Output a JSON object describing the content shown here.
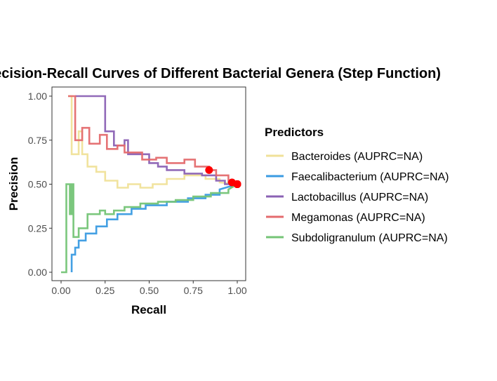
{
  "chart_data": {
    "type": "line",
    "title": "Precision-Recall Curves of Different Bacterial Genera (Step Function)",
    "xlabel": "Recall",
    "ylabel": "Precision",
    "xlim": [
      0,
      1
    ],
    "ylim": [
      0,
      1
    ],
    "x_ticks": [
      "0.00",
      "0.25",
      "0.50",
      "0.75",
      "1.00"
    ],
    "y_ticks": [
      "0.00",
      "0.25",
      "0.50",
      "0.75",
      "1.00"
    ],
    "grid": false,
    "legend_position": "right",
    "legend_title": "Predictors",
    "series": [
      {
        "name": "Bacteroides (AUPRC=NA)",
        "color": "#F0E199",
        "step": true,
        "points": [
          [
            0.04,
            1.0
          ],
          [
            0.06,
            1.0
          ],
          [
            0.06,
            0.67
          ],
          [
            0.1,
            0.67
          ],
          [
            0.1,
            0.8
          ],
          [
            0.12,
            0.8
          ],
          [
            0.12,
            0.67
          ],
          [
            0.15,
            0.67
          ],
          [
            0.15,
            0.6
          ],
          [
            0.2,
            0.6
          ],
          [
            0.2,
            0.57
          ],
          [
            0.25,
            0.57
          ],
          [
            0.25,
            0.52
          ],
          [
            0.32,
            0.52
          ],
          [
            0.32,
            0.48
          ],
          [
            0.38,
            0.48
          ],
          [
            0.38,
            0.5
          ],
          [
            0.45,
            0.5
          ],
          [
            0.45,
            0.48
          ],
          [
            0.52,
            0.48
          ],
          [
            0.52,
            0.5
          ],
          [
            0.6,
            0.5
          ],
          [
            0.6,
            0.53
          ],
          [
            0.7,
            0.53
          ],
          [
            0.7,
            0.55
          ],
          [
            0.82,
            0.55
          ],
          [
            0.82,
            0.53
          ],
          [
            0.9,
            0.53
          ],
          [
            0.9,
            0.51
          ],
          [
            1.0,
            0.5
          ]
        ],
        "endpoint": [
          1.0,
          0.5
        ]
      },
      {
        "name": "Faecalibacterium (AUPRC=NA)",
        "color": "#3A9BE2",
        "step": true,
        "points": [
          [
            0.06,
            0.0
          ],
          [
            0.06,
            0.1
          ],
          [
            0.08,
            0.1
          ],
          [
            0.08,
            0.14
          ],
          [
            0.1,
            0.14
          ],
          [
            0.1,
            0.18
          ],
          [
            0.14,
            0.18
          ],
          [
            0.14,
            0.22
          ],
          [
            0.2,
            0.22
          ],
          [
            0.2,
            0.26
          ],
          [
            0.26,
            0.26
          ],
          [
            0.26,
            0.3
          ],
          [
            0.32,
            0.3
          ],
          [
            0.32,
            0.33
          ],
          [
            0.4,
            0.33
          ],
          [
            0.4,
            0.36
          ],
          [
            0.48,
            0.36
          ],
          [
            0.48,
            0.38
          ],
          [
            0.6,
            0.38
          ],
          [
            0.6,
            0.4
          ],
          [
            0.72,
            0.4
          ],
          [
            0.72,
            0.42
          ],
          [
            0.82,
            0.42
          ],
          [
            0.82,
            0.44
          ],
          [
            0.9,
            0.44
          ],
          [
            0.9,
            0.47
          ],
          [
            1.0,
            0.5
          ]
        ],
        "endpoint": [
          1.0,
          0.5
        ]
      },
      {
        "name": "Lactobacillus (AUPRC=NA)",
        "color": "#8B62B4",
        "step": true,
        "points": [
          [
            0.08,
            1.0
          ],
          [
            0.25,
            1.0
          ],
          [
            0.25,
            0.8
          ],
          [
            0.3,
            0.8
          ],
          [
            0.3,
            0.72
          ],
          [
            0.36,
            0.72
          ],
          [
            0.36,
            0.75
          ],
          [
            0.38,
            0.75
          ],
          [
            0.38,
            0.67
          ],
          [
            0.5,
            0.67
          ],
          [
            0.5,
            0.62
          ],
          [
            0.55,
            0.62
          ],
          [
            0.55,
            0.6
          ],
          [
            0.6,
            0.6
          ],
          [
            0.6,
            0.58
          ],
          [
            0.7,
            0.58
          ],
          [
            0.7,
            0.56
          ],
          [
            0.8,
            0.56
          ],
          [
            0.8,
            0.55
          ],
          [
            0.88,
            0.55
          ],
          [
            0.88,
            0.52
          ],
          [
            0.93,
            0.52
          ],
          [
            0.93,
            0.5
          ],
          [
            1.0,
            0.5
          ]
        ],
        "endpoint": [
          1.0,
          0.5
        ]
      },
      {
        "name": "Megamonas (AUPRC=NA)",
        "color": "#E46B6E",
        "step": true,
        "points": [
          [
            0.04,
            1.0
          ],
          [
            0.08,
            1.0
          ],
          [
            0.08,
            0.75
          ],
          [
            0.12,
            0.75
          ],
          [
            0.12,
            0.82
          ],
          [
            0.16,
            0.82
          ],
          [
            0.16,
            0.73
          ],
          [
            0.22,
            0.73
          ],
          [
            0.22,
            0.78
          ],
          [
            0.26,
            0.78
          ],
          [
            0.26,
            0.7
          ],
          [
            0.32,
            0.7
          ],
          [
            0.32,
            0.72
          ],
          [
            0.36,
            0.72
          ],
          [
            0.36,
            0.68
          ],
          [
            0.46,
            0.68
          ],
          [
            0.46,
            0.64
          ],
          [
            0.54,
            0.64
          ],
          [
            0.54,
            0.65
          ],
          [
            0.6,
            0.65
          ],
          [
            0.6,
            0.62
          ],
          [
            0.7,
            0.62
          ],
          [
            0.7,
            0.64
          ],
          [
            0.76,
            0.64
          ],
          [
            0.76,
            0.6
          ],
          [
            0.84,
            0.6
          ],
          [
            0.84,
            0.58
          ],
          [
            0.88,
            0.58
          ],
          [
            0.88,
            0.55
          ],
          [
            0.95,
            0.55
          ],
          [
            0.95,
            0.51
          ],
          [
            1.0,
            0.5
          ]
        ],
        "endpoint": [
          0.84,
          0.58
        ],
        "extra_endpoints": [
          [
            0.97,
            0.51
          ],
          [
            1.0,
            0.5
          ]
        ]
      },
      {
        "name": "Subdoligranulum (AUPRC=NA)",
        "color": "#74C476",
        "step": true,
        "points": [
          [
            0.0,
            0.0
          ],
          [
            0.03,
            0.0
          ],
          [
            0.03,
            0.5
          ],
          [
            0.05,
            0.5
          ],
          [
            0.05,
            0.33
          ],
          [
            0.06,
            0.33
          ],
          [
            0.06,
            0.5
          ],
          [
            0.07,
            0.5
          ],
          [
            0.07,
            0.2
          ],
          [
            0.1,
            0.2
          ],
          [
            0.1,
            0.25
          ],
          [
            0.15,
            0.25
          ],
          [
            0.15,
            0.33
          ],
          [
            0.22,
            0.33
          ],
          [
            0.22,
            0.35
          ],
          [
            0.25,
            0.35
          ],
          [
            0.25,
            0.33
          ],
          [
            0.3,
            0.33
          ],
          [
            0.3,
            0.35
          ],
          [
            0.36,
            0.35
          ],
          [
            0.36,
            0.37
          ],
          [
            0.45,
            0.37
          ],
          [
            0.45,
            0.39
          ],
          [
            0.55,
            0.39
          ],
          [
            0.55,
            0.4
          ],
          [
            0.65,
            0.4
          ],
          [
            0.65,
            0.41
          ],
          [
            0.75,
            0.41
          ],
          [
            0.75,
            0.43
          ],
          [
            0.85,
            0.43
          ],
          [
            0.85,
            0.45
          ],
          [
            0.95,
            0.45
          ],
          [
            0.95,
            0.47
          ],
          [
            1.0,
            0.5
          ]
        ],
        "endpoint": [
          1.0,
          0.5
        ]
      }
    ]
  }
}
